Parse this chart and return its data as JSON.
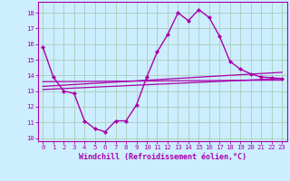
{
  "xlabel": "Windchill (Refroidissement éolien,°C)",
  "bg_color": "#cceeff",
  "grid_color": "#aaccbb",
  "line_color": "#aa00aa",
  "xlim": [
    -0.5,
    23.5
  ],
  "ylim": [
    9.8,
    18.7
  ],
  "yticks": [
    10,
    11,
    12,
    13,
    14,
    15,
    16,
    17,
    18
  ],
  "xticks": [
    0,
    1,
    2,
    3,
    4,
    5,
    6,
    7,
    8,
    9,
    10,
    11,
    12,
    13,
    14,
    15,
    16,
    17,
    18,
    19,
    20,
    21,
    22,
    23
  ],
  "main_x": [
    0,
    1,
    2,
    3,
    4,
    5,
    6,
    7,
    8,
    9,
    10,
    11,
    12,
    13,
    14,
    15,
    16,
    17,
    18,
    19,
    20,
    21,
    22,
    23
  ],
  "main_y": [
    15.8,
    13.9,
    13.0,
    12.85,
    11.1,
    10.6,
    10.4,
    11.1,
    11.1,
    12.1,
    13.9,
    15.5,
    16.6,
    18.0,
    17.5,
    18.2,
    17.7,
    16.5,
    14.9,
    14.4,
    14.1,
    13.9,
    13.85,
    13.8
  ],
  "line2_x": [
    0,
    23
  ],
  "line2_y": [
    13.1,
    13.8
  ],
  "line3_x": [
    0,
    23
  ],
  "line3_y": [
    13.3,
    14.2
  ],
  "line4_x": [
    0,
    23
  ],
  "line4_y": [
    13.6,
    13.7
  ],
  "xlabel_fontsize": 6.0,
  "tick_fontsize": 5.2
}
